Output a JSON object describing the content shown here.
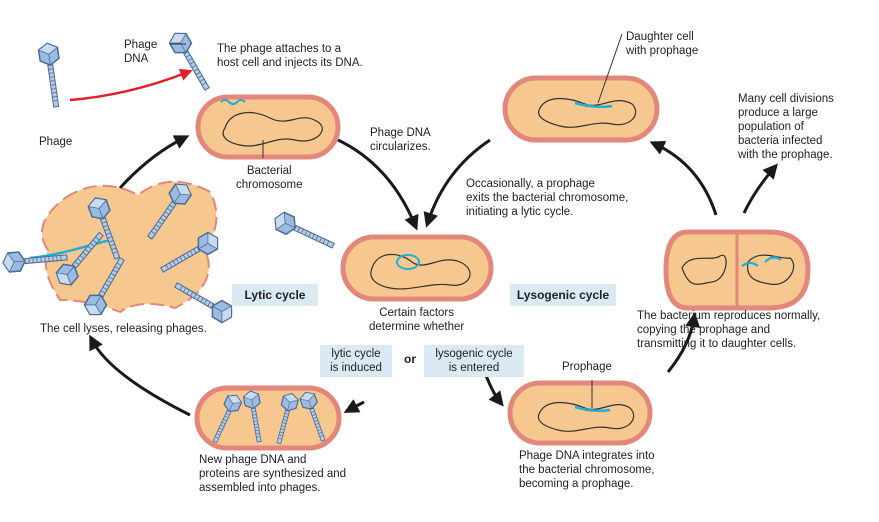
{
  "labels": {
    "phage": "Phage",
    "phage_dna": "Phage\nDNA",
    "attach": "The phage attaches to a\nhost cell and injects its DNA.",
    "bacterial_chromosome": "Bacterial\nchromosome",
    "circularizes": "Phage DNA\ncircularizes.",
    "daughter_cell": "Daughter cell\nwith prophage",
    "many_divisions": "Many cell divisions\nproduce a large\npopulation of\nbacteria infected\nwith the prophage.",
    "occasionally": "Occasionally, a prophage\nexits the bacterial chromosome,\ninitiating a lytic cycle.",
    "lytic_cycle": "Lytic cycle",
    "lysogenic_cycle": "Lysogenic cycle",
    "certain_factors": "Certain factors\ndetermine whether",
    "lytic_induced": "lytic cycle\nis induced",
    "or": "or",
    "lysogenic_entered": "lysogenic cycle\nis entered",
    "cell_lyses": "The cell lyses, releasing phages.",
    "reproduces": "The bacterium reproduces normally,\ncopying the prophage and\ntransmitting it to daughter cells.",
    "prophage": "Prophage",
    "new_phage": "New phage DNA and\nproteins are synthesized and\nassembled into phages.",
    "integrates": "Phage DNA integrates into\nthe bacterial chromosome,\nbecoming a prophage."
  },
  "colors": {
    "cell_fill": "#f6c890",
    "cell_rim": "#e3877a",
    "cell_rim_dark": "#c8605a",
    "phage_dna": "#1fb0d6",
    "phage_head": "#9bbbe0",
    "inject_arrow": "#e0202a",
    "arrow": "#1a1a1a",
    "label_bg": "#dbe9f2"
  }
}
